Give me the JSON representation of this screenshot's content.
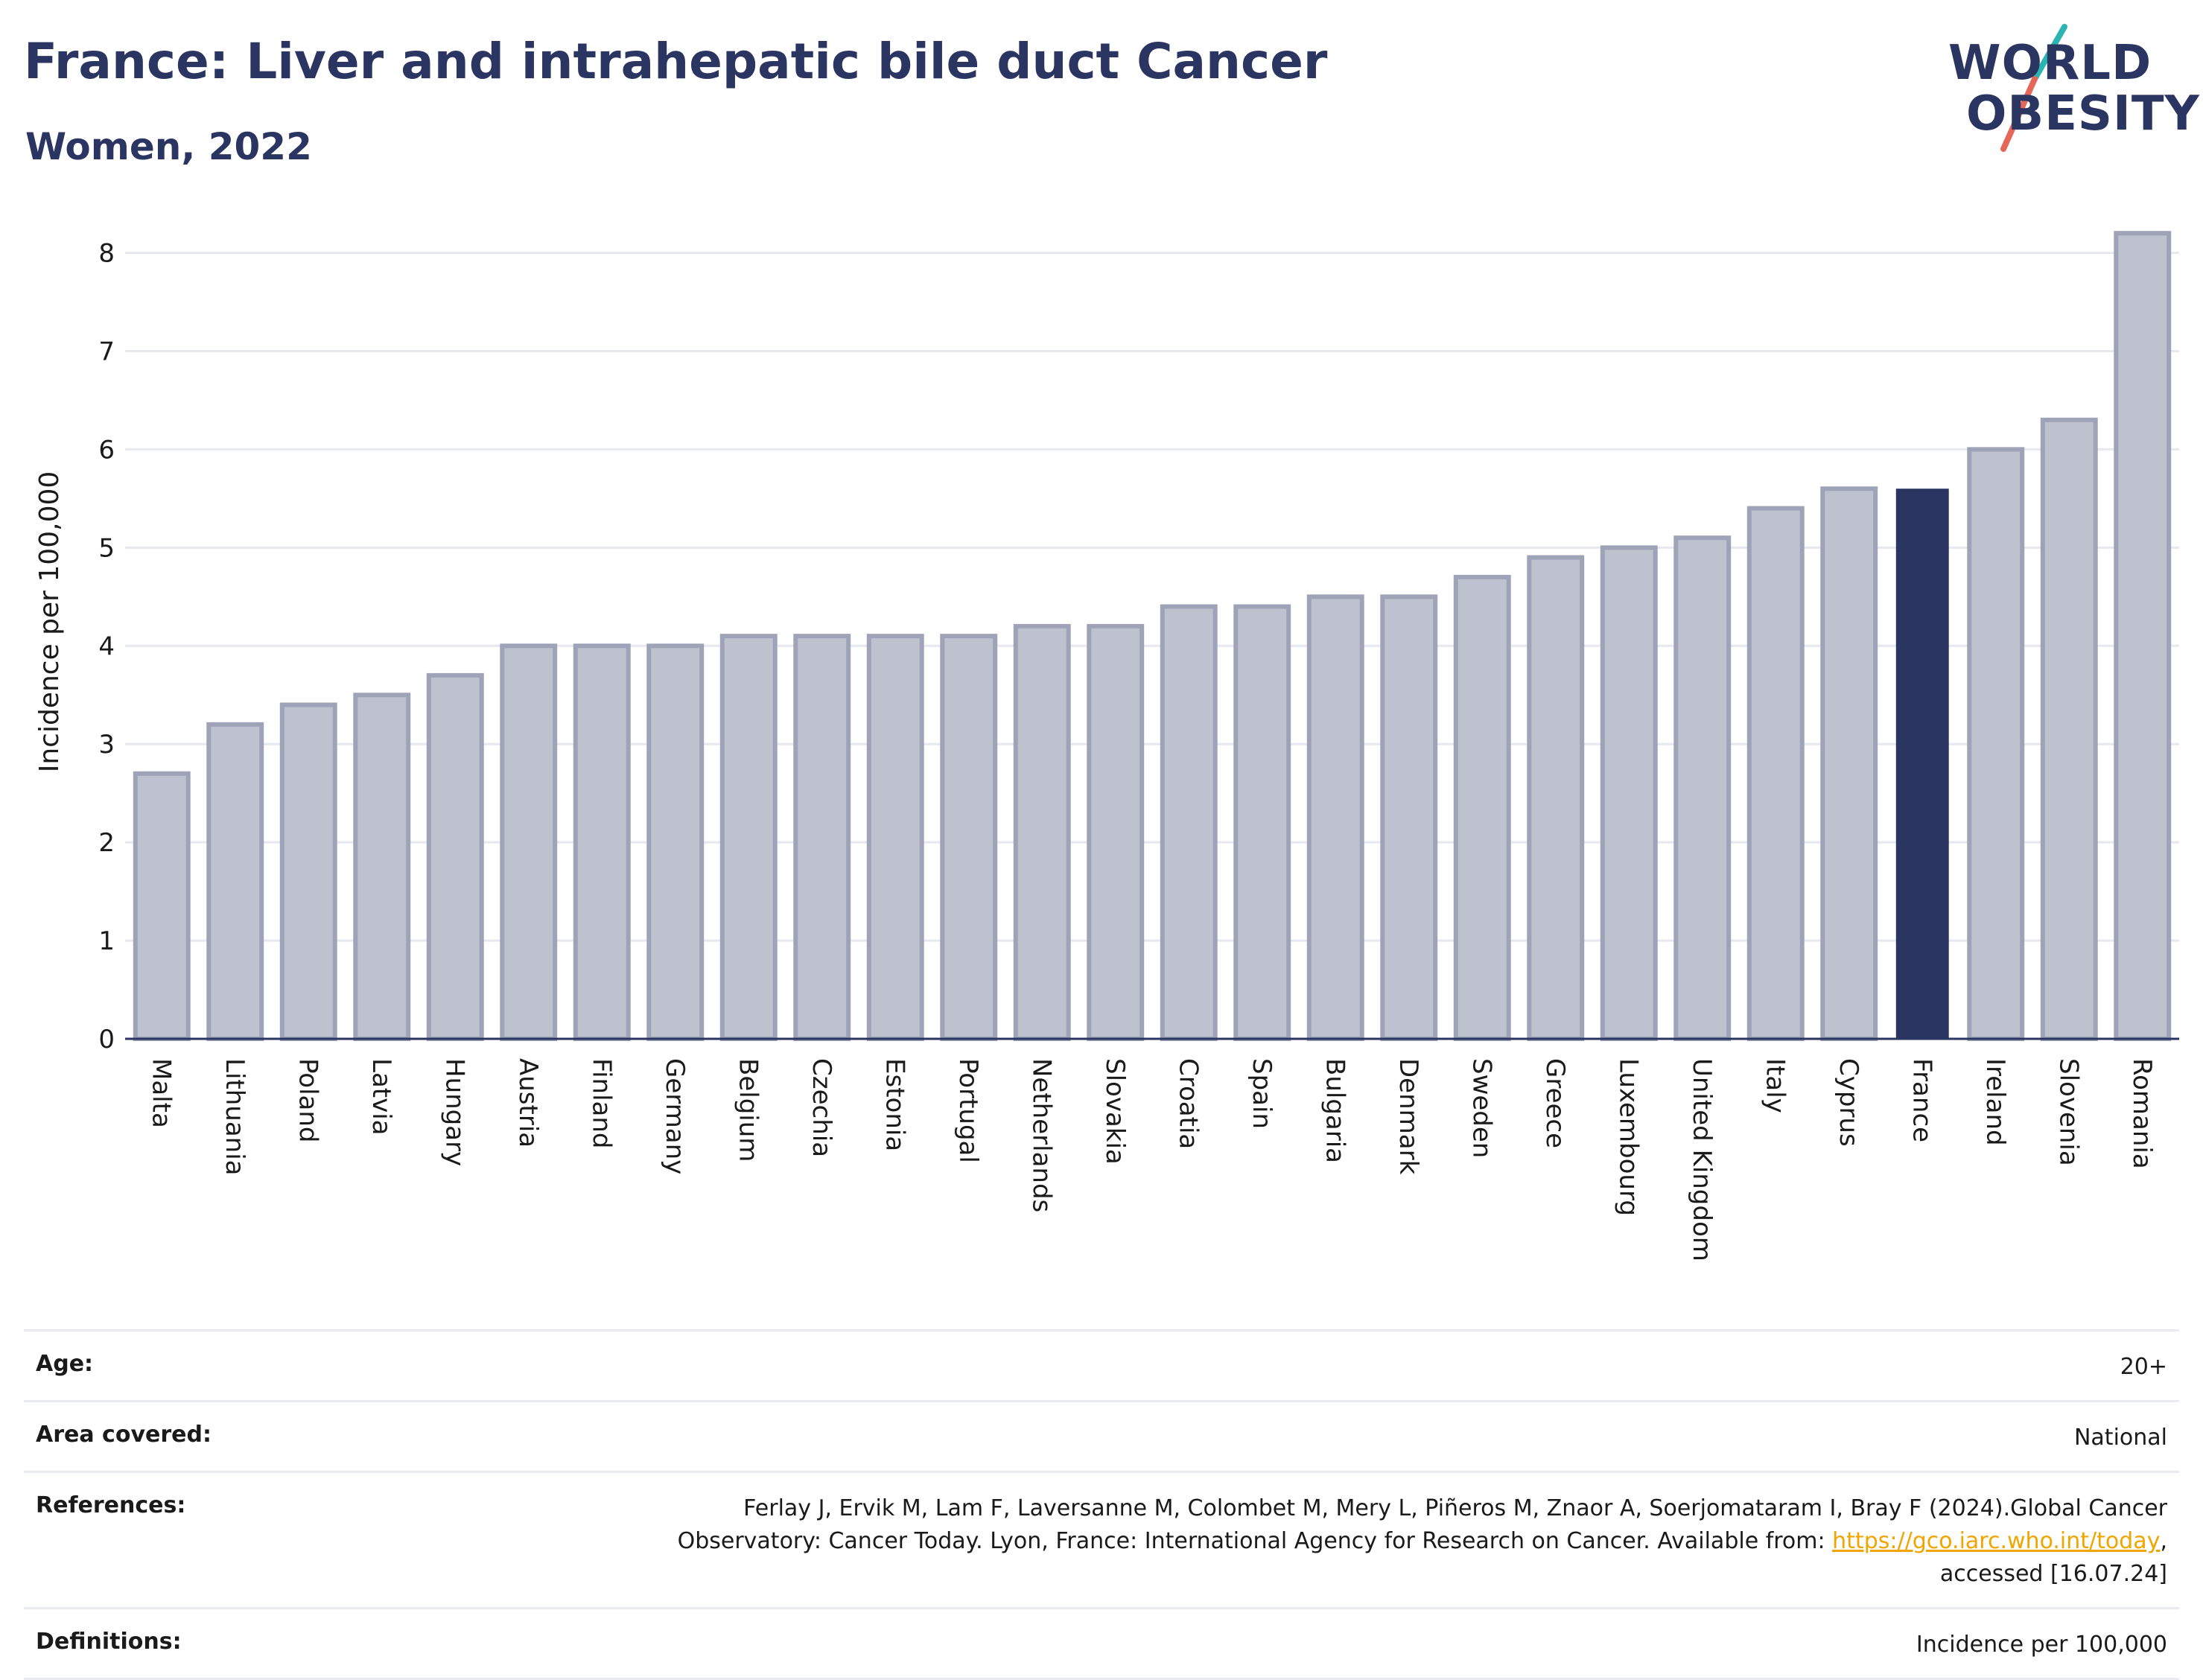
{
  "header": {
    "title": "France: Liver and intrahepatic bile duct Cancer",
    "subtitle": "Women, 2022"
  },
  "logo": {
    "line1": "WORLD",
    "line2": "OBESITY",
    "accent_colors": [
      "#2bb5b0",
      "#e5675b"
    ]
  },
  "chart_data": {
    "type": "bar",
    "ylabel": "Incidence per 100,000",
    "ylim": [
      0,
      8.3
    ],
    "yticks": [
      0,
      1,
      2,
      3,
      4,
      5,
      6,
      7,
      8
    ],
    "grid": true,
    "highlight": "France",
    "colors": {
      "bar": "#bec1ce",
      "bar_border": "#9ea3b8",
      "highlight": "#2b3561",
      "grid": "#e6e8ef",
      "axis": "#2b3561"
    },
    "categories": [
      "Malta",
      "Lithuania",
      "Poland",
      "Latvia",
      "Hungary",
      "Austria",
      "Finland",
      "Germany",
      "Belgium",
      "Czechia",
      "Estonia",
      "Portugal",
      "Netherlands",
      "Slovakia",
      "Croatia",
      "Spain",
      "Bulgaria",
      "Denmark",
      "Sweden",
      "Greece",
      "Luxembourg",
      "United Kingdom",
      "Italy",
      "Cyprus",
      "France",
      "Ireland",
      "Slovenia",
      "Romania"
    ],
    "values": [
      2.7,
      3.2,
      3.4,
      3.5,
      3.7,
      4.0,
      4.0,
      4.0,
      4.1,
      4.1,
      4.1,
      4.1,
      4.2,
      4.2,
      4.4,
      4.4,
      4.5,
      4.5,
      4.7,
      4.9,
      5.0,
      5.1,
      5.4,
      5.6,
      5.6,
      6.0,
      6.3,
      8.2
    ]
  },
  "info": {
    "age": {
      "label": "Age:",
      "value": "20+"
    },
    "area": {
      "label": "Area covered:",
      "value": "National"
    },
    "references": {
      "label": "References:",
      "text_before": "Ferlay J, Ervik M, Lam F, Laversanne M, Colombet M, Mery L, Piñeros M, Znaor A, Soerjomataram I, Bray F (2024).Global Cancer Observatory: Cancer Today. Lyon, France: International Agency for Research on Cancer. Available from: ",
      "link": "https://gco.iarc.who.int/today",
      "text_after": ", accessed [16.07.24]"
    },
    "definitions": {
      "label": "Definitions:",
      "value": "Incidence per 100,000"
    }
  }
}
